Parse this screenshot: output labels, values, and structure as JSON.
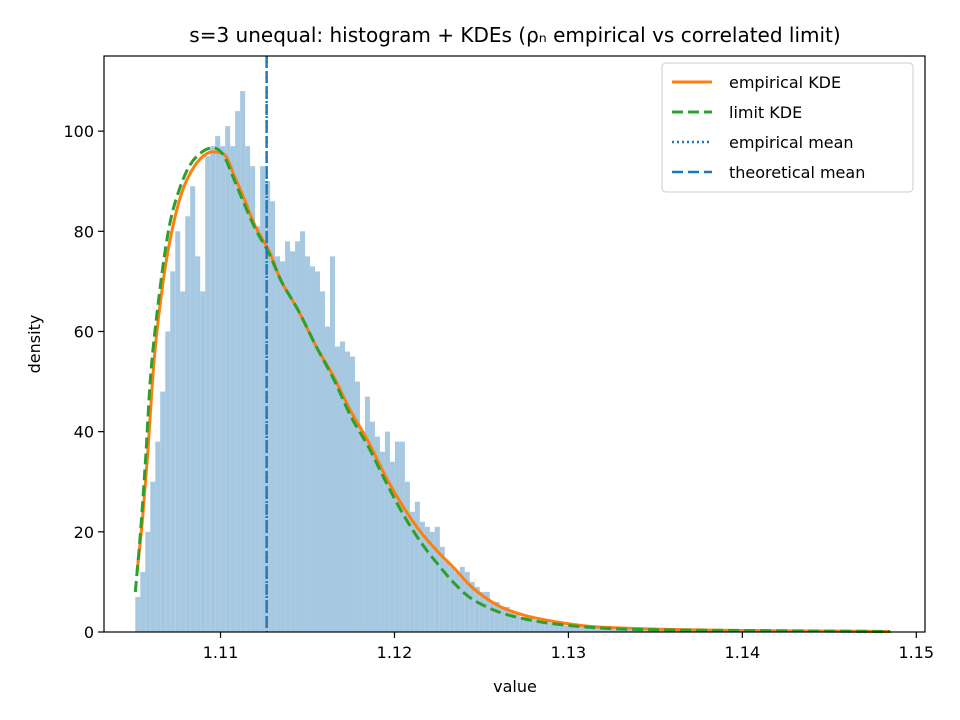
{
  "chart_data": {
    "type": "histogram",
    "title": "s=3 unequal: histogram + KDEs (ρₙ empirical vs correlated limit)",
    "xlabel": "value",
    "ylabel": "density",
    "xlim": [
      1.1033,
      1.1505
    ],
    "ylim": [
      0,
      115
    ],
    "x_ticks": [
      1.11,
      1.12,
      1.13,
      1.14,
      1.15
    ],
    "x_tick_labels": [
      "1.11",
      "1.12",
      "1.13",
      "1.14",
      "1.15"
    ],
    "y_ticks": [
      0,
      20,
      40,
      60,
      80,
      100
    ],
    "y_tick_labels": [
      "0",
      "20",
      "40",
      "60",
      "80",
      "100"
    ],
    "histogram": {
      "bin_start": 1.1051,
      "bin_width": 0.000287,
      "heights": [
        7,
        12,
        20,
        30,
        38,
        48,
        60,
        72,
        80,
        68,
        83,
        89,
        75,
        68,
        95,
        97,
        99,
        97,
        101,
        97,
        104,
        108,
        97,
        93,
        81,
        93,
        90,
        86,
        75,
        74,
        78,
        76,
        78,
        80,
        75,
        73,
        72,
        68,
        61,
        75,
        57,
        58,
        56,
        55,
        50,
        40,
        47,
        42,
        39,
        36,
        40,
        34,
        38,
        38,
        30,
        24,
        26,
        22,
        21,
        20,
        21,
        17,
        14,
        13,
        12,
        13,
        12,
        10,
        9,
        8,
        8,
        6,
        6,
        5,
        5,
        4,
        3.5,
        3,
        3,
        2.7,
        2.4,
        2.1,
        2,
        1.8,
        1.6,
        1.5,
        1.3,
        1.2,
        1.1,
        1,
        0.9,
        0.8,
        0.8,
        0.7,
        0.6,
        0.6,
        0.5,
        0.5,
        0.5,
        0.4,
        0.4,
        0.4,
        0.3,
        0.3,
        0.3,
        0.3,
        0.2,
        0.2,
        0.2,
        0.2,
        0.2,
        0.2,
        0.2,
        0.2,
        0.1,
        0.1,
        0.1,
        0.1,
        0.1,
        0.1,
        0.1,
        0.1,
        0.1,
        0.1,
        0.1,
        0.1,
        0.1,
        0.1,
        0.1,
        0.1,
        0.1,
        0.1,
        0.1,
        0.1,
        0.1,
        0.1,
        0.1,
        0.1,
        0.1,
        0.1,
        0.1,
        0.1,
        0.1,
        0.1,
        0.1,
        0.1,
        0.1,
        0.1,
        0.1,
        0.1,
        0.1,
        0.1
      ]
    },
    "series": [
      {
        "name": "empirical KDE",
        "color": "#ff7f0e",
        "style": "solid",
        "x": [
          1.1052,
          1.1055,
          1.1058,
          1.1062,
          1.1067,
          1.1072,
          1.1078,
          1.1085,
          1.1092,
          1.1098,
          1.1103,
          1.1108,
          1.1113,
          1.112,
          1.1128,
          1.1135,
          1.1145,
          1.1155,
          1.1165,
          1.1175,
          1.1185,
          1.1195,
          1.1205,
          1.1215,
          1.1225,
          1.1235,
          1.1245,
          1.126,
          1.1275,
          1.129,
          1.131,
          1.133,
          1.136,
          1.14,
          1.1443,
          1.1485
        ],
        "y": [
          12,
          22,
          35,
          55,
          70,
          80,
          88,
          93,
          95.5,
          95.8,
          95,
          91,
          87,
          81,
          76,
          70,
          64,
          57,
          51,
          44,
          38,
          31,
          25,
          20,
          16,
          12.5,
          8.8,
          5.2,
          3.3,
          2.2,
          1.2,
          0.8,
          0.5,
          0.3,
          0.2,
          0.1
        ]
      },
      {
        "name": "limit KDE",
        "color": "#2ca02c",
        "style": "dashed",
        "x": [
          1.1051,
          1.1054,
          1.1057,
          1.106,
          1.1065,
          1.107,
          1.1075,
          1.1082,
          1.109,
          1.1097,
          1.1102,
          1.1107,
          1.1113,
          1.112,
          1.1128,
          1.1135,
          1.1145,
          1.1155,
          1.1165,
          1.1175,
          1.1185,
          1.1195,
          1.1205,
          1.1215,
          1.1225,
          1.1235,
          1.1245,
          1.126,
          1.1275,
          1.129,
          1.131,
          1.133,
          1.136,
          1.14,
          1.1443,
          1.1485
        ],
        "y": [
          8,
          20,
          35,
          52,
          68,
          80,
          87,
          93,
          96,
          96.6,
          95,
          91,
          86,
          80.5,
          75.5,
          70,
          64,
          57,
          50.5,
          43,
          37,
          30,
          23.5,
          18,
          13.5,
          9.5,
          6.5,
          4,
          2.6,
          1.7,
          1,
          0.6,
          0.4,
          0.3,
          0.2,
          0.1
        ]
      }
    ],
    "vlines": [
      {
        "name": "empirical mean",
        "x": 1.11265,
        "color": "#1f77b4",
        "style": "dotted"
      },
      {
        "name": "theoretical mean",
        "x": 1.11265,
        "color": "#1f77b4",
        "style": "dashed"
      }
    ],
    "histogram_color": "#a6c8e0",
    "legend_position": "top-right",
    "grid": false
  }
}
